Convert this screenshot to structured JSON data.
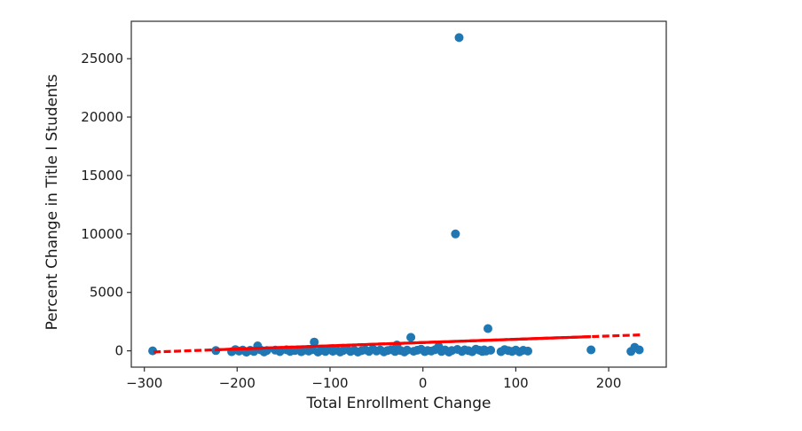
{
  "figure": {
    "background": "#ffffff",
    "spine_color": "#2b2b2b",
    "tick_label_color": "#1a1a1a"
  },
  "chart_data": {
    "type": "scatter",
    "title": "",
    "xlabel": "Total Enrollment Change",
    "ylabel": "Percent Change in Title I Students",
    "xlim": [
      -314,
      262
    ],
    "ylim": [
      -1400,
      28200
    ],
    "x_ticks": [
      -300,
      -200,
      -100,
      0,
      100,
      200
    ],
    "y_ticks": [
      0,
      5000,
      10000,
      15000,
      20000,
      25000
    ],
    "grid": false,
    "legend": null,
    "point_color": "#1f77b4",
    "point_radius": 5,
    "trend_color": "#ff0000",
    "trendline": {
      "x_start": -290,
      "y_start": -100,
      "x_end": 235,
      "y_end": 1360,
      "style": "dashed",
      "solid_overlap": [
        -223,
        181
      ]
    },
    "points": [
      [
        -291,
        0
      ],
      [
        -223,
        20
      ],
      [
        -206,
        -80
      ],
      [
        -202,
        100
      ],
      [
        -198,
        -30
      ],
      [
        -194,
        60
      ],
      [
        -190,
        -120
      ],
      [
        -186,
        40
      ],
      [
        -182,
        -60
      ],
      [
        -178,
        420
      ],
      [
        -175,
        80
      ],
      [
        -171,
        -100
      ],
      [
        -168,
        30
      ],
      [
        -159,
        60
      ],
      [
        -154,
        -70
      ],
      [
        -147,
        90
      ],
      [
        -143,
        -50
      ],
      [
        -138,
        20
      ],
      [
        -131,
        -80
      ],
      [
        -127,
        60
      ],
      [
        -123,
        -30
      ],
      [
        -119,
        100
      ],
      [
        -117,
        750
      ],
      [
        -113,
        -110
      ],
      [
        -109,
        40
      ],
      [
        -105,
        -60
      ],
      [
        -101,
        110
      ],
      [
        -97,
        -40
      ],
      [
        -93,
        60
      ],
      [
        -89,
        -100
      ],
      [
        -86,
        20
      ],
      [
        -82,
        130
      ],
      [
        -78,
        -60
      ],
      [
        -74,
        50
      ],
      [
        -70,
        -110
      ],
      [
        -66,
        10
      ],
      [
        -62,
        80
      ],
      [
        -58,
        -50
      ],
      [
        -54,
        150
      ],
      [
        -50,
        -20
      ],
      [
        -46,
        70
      ],
      [
        -42,
        -90
      ],
      [
        -38,
        30
      ],
      [
        -34,
        100
      ],
      [
        -30,
        -60
      ],
      [
        -28,
        500
      ],
      [
        -24,
        20
      ],
      [
        -20,
        -100
      ],
      [
        -17,
        60
      ],
      [
        -13,
        1150
      ],
      [
        -10,
        -40
      ],
      [
        -6,
        50
      ],
      [
        -2,
        140
      ],
      [
        2,
        -70
      ],
      [
        5,
        30
      ],
      [
        9,
        -30
      ],
      [
        13,
        90
      ],
      [
        17,
        350
      ],
      [
        20,
        -60
      ],
      [
        24,
        70
      ],
      [
        28,
        -110
      ],
      [
        31,
        20
      ],
      [
        35,
        10000
      ],
      [
        37,
        120
      ],
      [
        39,
        26800
      ],
      [
        42,
        -50
      ],
      [
        45,
        80
      ],
      [
        49,
        10
      ],
      [
        53,
        -80
      ],
      [
        57,
        140
      ],
      [
        61,
        40
      ],
      [
        64,
        -60
      ],
      [
        66,
        80
      ],
      [
        68,
        -30
      ],
      [
        70,
        1900
      ],
      [
        73,
        50
      ],
      [
        84,
        -70
      ],
      [
        88,
        100
      ],
      [
        92,
        10
      ],
      [
        96,
        -50
      ],
      [
        100,
        60
      ],
      [
        104,
        -90
      ],
      [
        108,
        40
      ],
      [
        113,
        -30
      ],
      [
        181,
        80
      ],
      [
        224,
        -60
      ],
      [
        228,
        300
      ],
      [
        233,
        80
      ]
    ]
  }
}
